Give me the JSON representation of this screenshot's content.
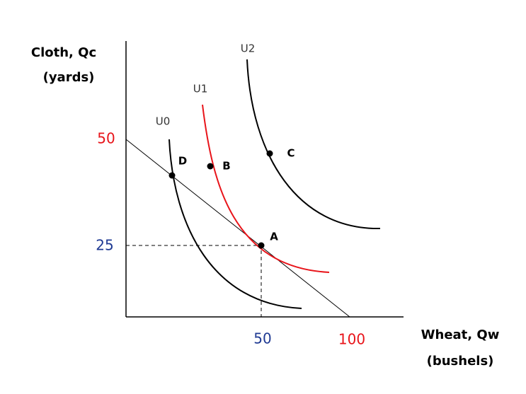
{
  "y_axis": {
    "title": [
      "Cloth, Qc",
      "(yards)"
    ],
    "ticks": [
      "50",
      "25"
    ]
  },
  "x_axis": {
    "title": [
      "Wheat, Qw",
      "(bushels)"
    ],
    "ticks": [
      "50",
      "100"
    ]
  },
  "curves": [
    {
      "label": "U0"
    },
    {
      "label": "U1"
    },
    {
      "label": "U2"
    }
  ],
  "points": [
    {
      "label": "A"
    },
    {
      "label": "B"
    },
    {
      "label": "C"
    },
    {
      "label": "D"
    }
  ]
}
